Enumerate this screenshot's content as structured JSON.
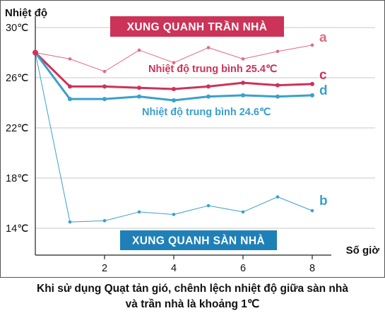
{
  "chart_data": {
    "type": "line",
    "ylabel": "Nhiệt độ",
    "xlabel": "Số giờ",
    "y_ticks": [
      "30℃",
      "26℃",
      "22℃",
      "18℃",
      "14℃"
    ],
    "y_tick_values": [
      30,
      26,
      22,
      18,
      14
    ],
    "x_ticks": [
      2,
      4,
      6,
      8
    ],
    "xlim": [
      0,
      8.6
    ],
    "ylim": [
      13.2,
      31.5
    ],
    "grid": "horizontal",
    "x": [
      0,
      1,
      2,
      3,
      4,
      5,
      6,
      7,
      8
    ],
    "series": [
      {
        "name": "a",
        "color": "#e06a80",
        "values": [
          28.0,
          27.5,
          26.5,
          28.2,
          27.2,
          28.4,
          27.5,
          28.1,
          28.6
        ]
      },
      {
        "name": "c",
        "color": "#cc3358",
        "values": [
          28.0,
          25.3,
          25.3,
          25.2,
          25.1,
          25.3,
          25.6,
          25.4,
          25.5
        ]
      },
      {
        "name": "d",
        "color": "#3aa0cc",
        "values": [
          28.0,
          24.3,
          24.3,
          24.5,
          24.2,
          24.5,
          24.6,
          24.5,
          24.6
        ]
      },
      {
        "name": "b",
        "color": "#3aa0cc",
        "values": [
          28.0,
          14.5,
          14.6,
          15.3,
          15.1,
          15.8,
          15.3,
          16.5,
          15.4
        ]
      }
    ],
    "annotations": [
      {
        "text": "XUNG QUANH TRẦN NHÀ",
        "style": "box",
        "color": "#cc3358"
      },
      {
        "text": "XUNG QUANH SÀN NHÀ",
        "style": "box",
        "color": "#1f80b8"
      },
      {
        "text": "Nhiệt độ trung bình 25.4℃",
        "style": "label",
        "color": "#cc3358",
        "series": "c"
      },
      {
        "text": "Nhiệt độ trung bình 24.6℃",
        "style": "label",
        "color": "#3a9fcc",
        "series": "d"
      }
    ]
  },
  "caption": {
    "line1": "Khi sử dụng Quạt tản gió, chênh lệch nhiệt độ giữa sàn nhà",
    "line2": "và trần nhà là khoảng 1℃"
  }
}
